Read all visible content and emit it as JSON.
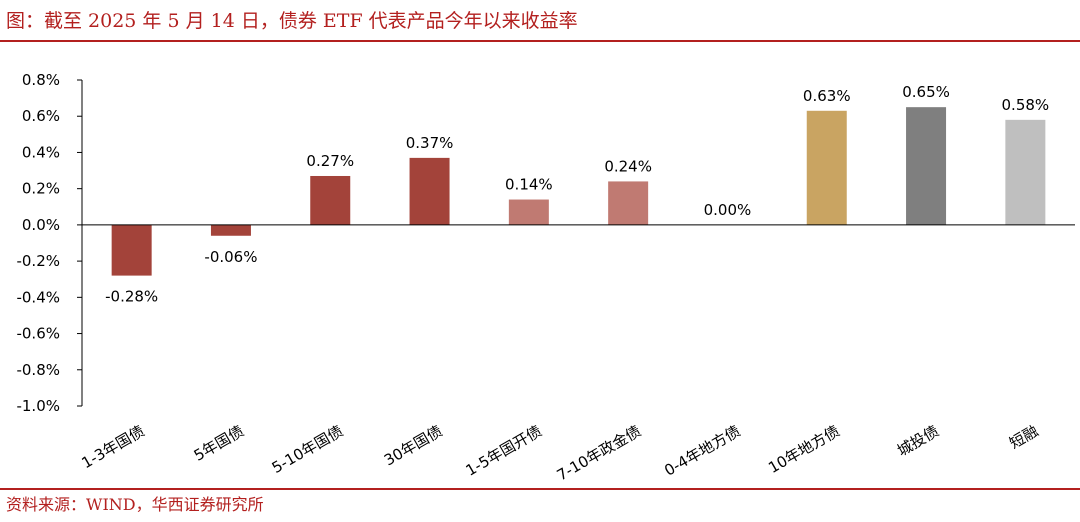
{
  "title": "图：截至 2025 年 5 月 14 日，债券 ETF 代表产品今年以来收益率",
  "source": "资料来源：WIND，华西证券研究所",
  "chart_data": {
    "type": "bar",
    "categories": [
      "1-3年国债",
      "5年国债",
      "5-10年国债",
      "30年国债",
      "1-5年国开债",
      "7-10年政金债",
      "0-4年地方债",
      "10年地方债",
      "城投债",
      "短融"
    ],
    "values": [
      -0.28,
      -0.06,
      0.27,
      0.37,
      0.14,
      0.24,
      0.0,
      0.63,
      0.65,
      0.58
    ],
    "data_labels": [
      "-0.28%",
      "-0.06%",
      "0.27%",
      "0.37%",
      "0.14%",
      "0.24%",
      "0.00%",
      "0.63%",
      "0.65%",
      "0.58%"
    ],
    "colors": [
      "#a3433a",
      "#a3433a",
      "#a3433a",
      "#a3433a",
      "#c07a72",
      "#c07a72",
      "#c07a72",
      "#c9a462",
      "#7f7f7f",
      "#bfbfbf"
    ],
    "yticks": [
      "0.8%",
      "0.6%",
      "0.4%",
      "0.2%",
      "0.0%",
      "-0.2%",
      "-0.4%",
      "-0.6%",
      "-0.8%",
      "-1.0%"
    ],
    "ytick_values": [
      0.8,
      0.6,
      0.4,
      0.2,
      0.0,
      -0.2,
      -0.4,
      -0.6,
      -0.8,
      -1.0
    ],
    "ylim": [
      -1.0,
      0.8
    ],
    "xlabel": "",
    "ylabel": "",
    "grid": false
  }
}
